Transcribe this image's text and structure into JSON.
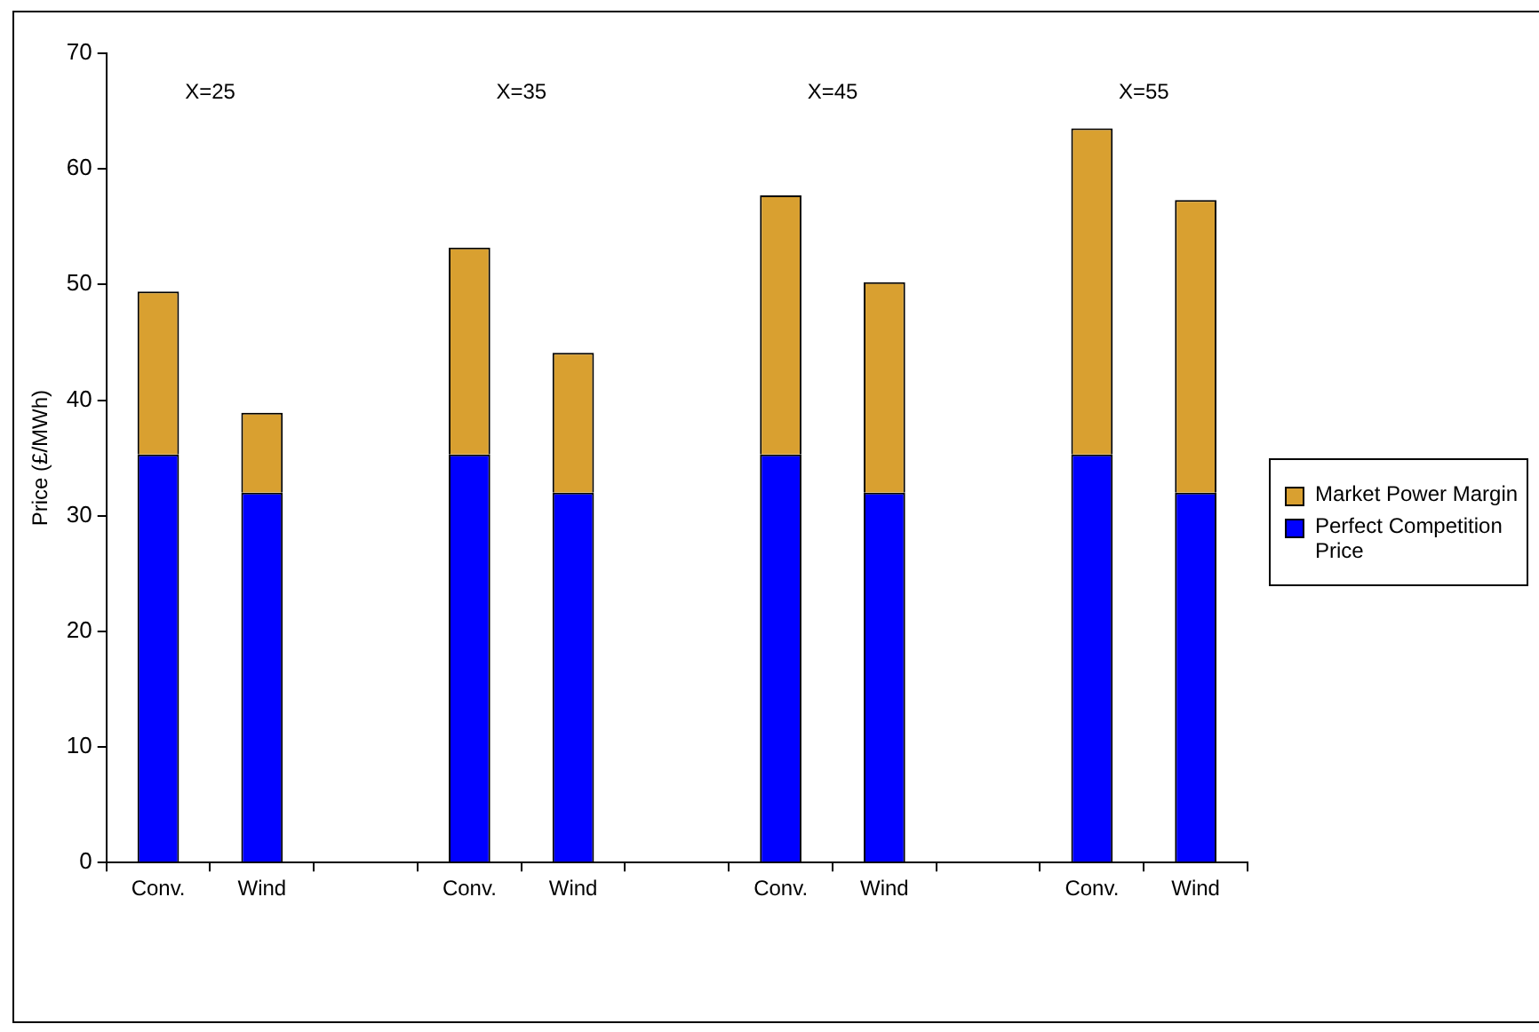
{
  "chart_data": {
    "type": "bar",
    "stacked": true,
    "ylabel": "Price (£/MWh)",
    "categories": [
      "Conv.",
      "Wind",
      null,
      "Conv.",
      "Wind",
      null,
      "Conv.",
      "Wind",
      null,
      "Conv.",
      "Wind"
    ],
    "series": [
      {
        "name": "Perfect Competition Price",
        "color": "#0000ff",
        "values": [
          35.3,
          32,
          null,
          35.3,
          32,
          null,
          35.3,
          32,
          null,
          35.3,
          32
        ]
      },
      {
        "name": "Market Power Margin",
        "color": "#d9a030",
        "values": [
          14.1,
          6.9,
          null,
          17.9,
          12.1,
          null,
          22.4,
          18.2,
          null,
          28.2,
          25.3
        ]
      }
    ],
    "ylim": [
      0,
      70
    ],
    "yticks": [
      0,
      10,
      20,
      30,
      40,
      50,
      60,
      70
    ],
    "grid": false,
    "legend": "right",
    "annotations": [
      "X=25",
      "X=35",
      "X=45",
      "X=55"
    ]
  }
}
